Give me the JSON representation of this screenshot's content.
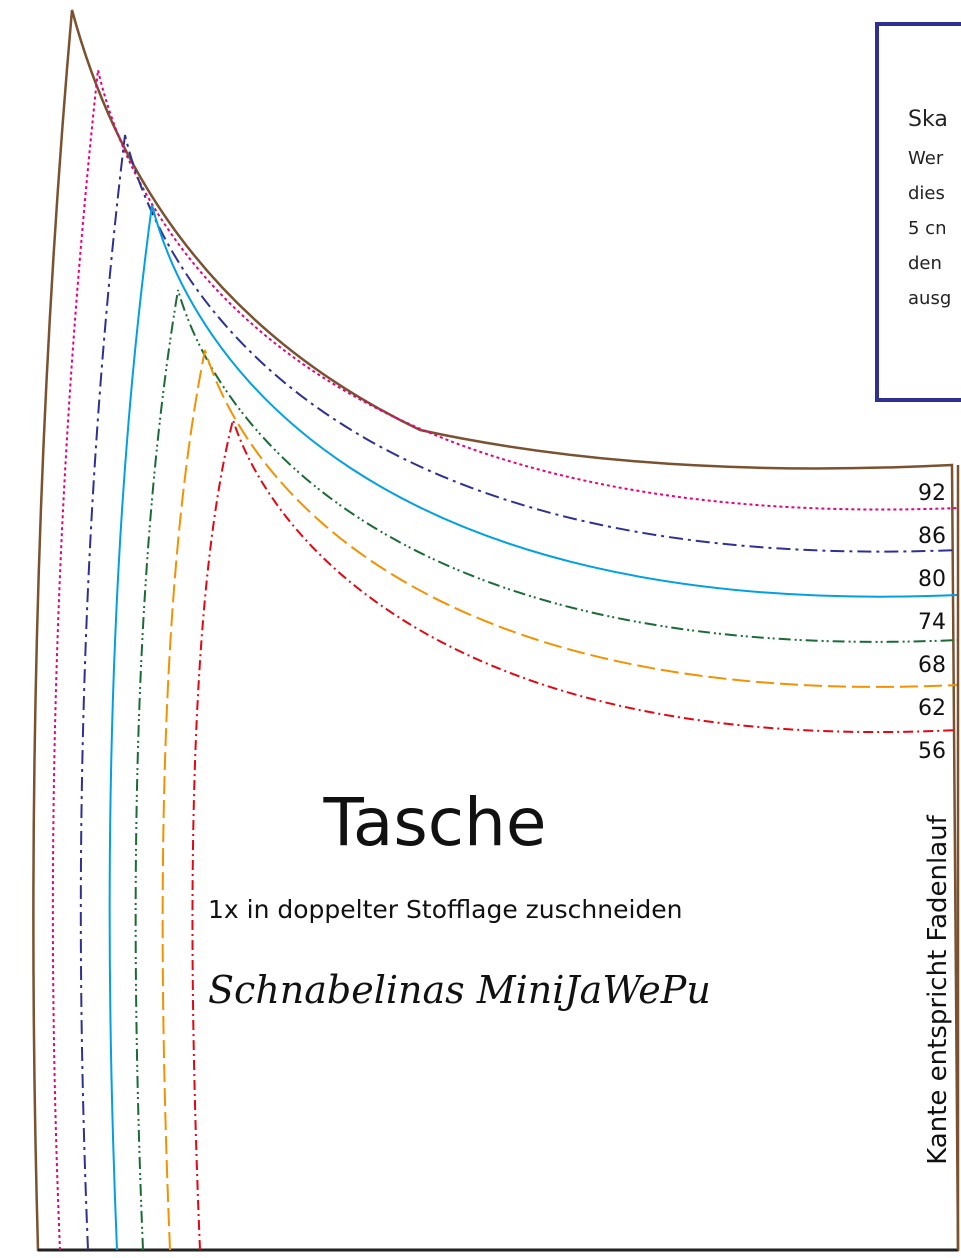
{
  "info_box": {
    "lines": [
      "Ska",
      "Wer",
      "dies",
      "5 cn",
      "den",
      "ausg"
    ]
  },
  "sizes": [
    92,
    86,
    80,
    74,
    68,
    62,
    56
  ],
  "title": "Tasche",
  "subtitle": "1x in doppelter Stofflage zuschneiden",
  "brand": "Schnabelinas MiniJaWePu",
  "edge_note": "Kante entspricht Fadenlauf"
}
